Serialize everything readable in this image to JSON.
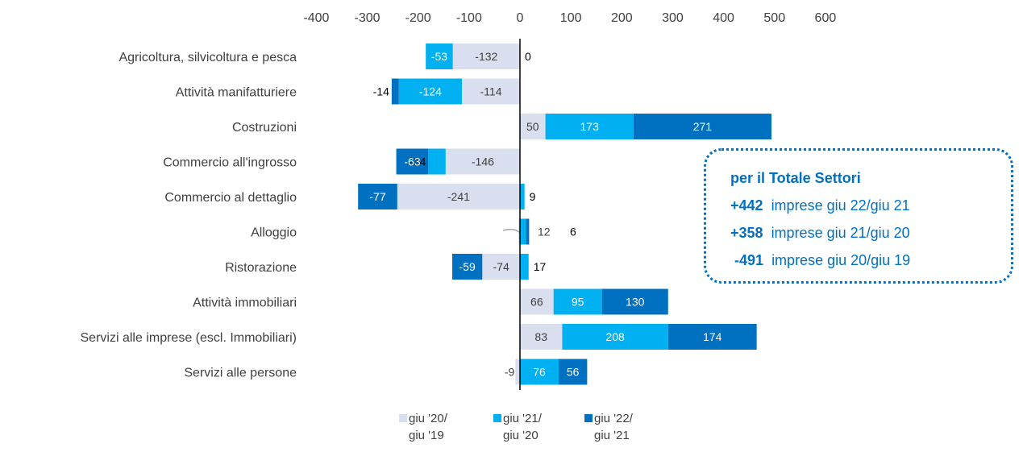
{
  "chart_data": {
    "type": "bar",
    "orientation": "horizontal",
    "stacked": true,
    "xlim": [
      -400,
      600
    ],
    "xticks": [
      -400,
      -300,
      -200,
      -100,
      0,
      100,
      200,
      300,
      400,
      500,
      600
    ],
    "xtick_labels": [
      "-400",
      "-300",
      "-200",
      "-100",
      "0",
      "100",
      "200",
      "300",
      "400",
      "500",
      "600"
    ],
    "categories": [
      "Agricoltura, silvicoltura e pesca",
      "Attività manifatturiere",
      "Costruzioni",
      "Commercio all'ingrosso",
      "Commercio al dettaglio",
      "Alloggio",
      "Ristorazione",
      "Attività immobiliari",
      "Servizi alle imprese (escl. Immobiliari)",
      "Servizi alle persone"
    ],
    "series": [
      {
        "name": "giu '20/ giu '19",
        "legend_lines": [
          "giu '20/",
          "giu '19"
        ],
        "color": "#D9DFEE",
        "label_color": "#404040",
        "values": [
          -132,
          -114,
          50,
          -146,
          -241,
          -3,
          -74,
          66,
          83,
          -9
        ],
        "labels": [
          "-132",
          "-114",
          "50",
          "-146",
          "-241",
          "",
          "-74",
          "66",
          "83",
          "-9"
        ]
      },
      {
        "name": "giu '21/ giu '20",
        "legend_lines": [
          "giu '21/",
          "giu '20"
        ],
        "color": "#00B0F0",
        "label_color": "#FFFFFF",
        "values": [
          -53,
          -124,
          173,
          -34,
          9,
          12,
          17,
          95,
          208,
          76
        ],
        "labels": [
          "-53",
          "-124",
          "173",
          "-34",
          "9",
          "12",
          "17",
          "95",
          "208",
          "76"
        ]
      },
      {
        "name": "giu '22/ giu '21",
        "legend_lines": [
          "giu '22/",
          "giu '21"
        ],
        "color": "#0070C0",
        "label_color": "#FFFFFF",
        "values": [
          0,
          -14,
          271,
          -63,
          -77,
          6,
          -59,
          130,
          174,
          56
        ],
        "labels": [
          "0",
          "-14",
          "271",
          "-63",
          "-77",
          "6",
          "-59",
          "130",
          "174",
          "56"
        ]
      }
    ],
    "legend_position": "bottom",
    "grid": false
  },
  "annotation": {
    "title": "per il Totale Settori",
    "rows": [
      {
        "value": "+442",
        "text": "imprese giu 22/giu 21"
      },
      {
        "value": "+358",
        "text": "imprese giu 21/giu 20"
      },
      {
        "value": "-491",
        "text": "imprese giu 20/giu 19"
      }
    ]
  }
}
